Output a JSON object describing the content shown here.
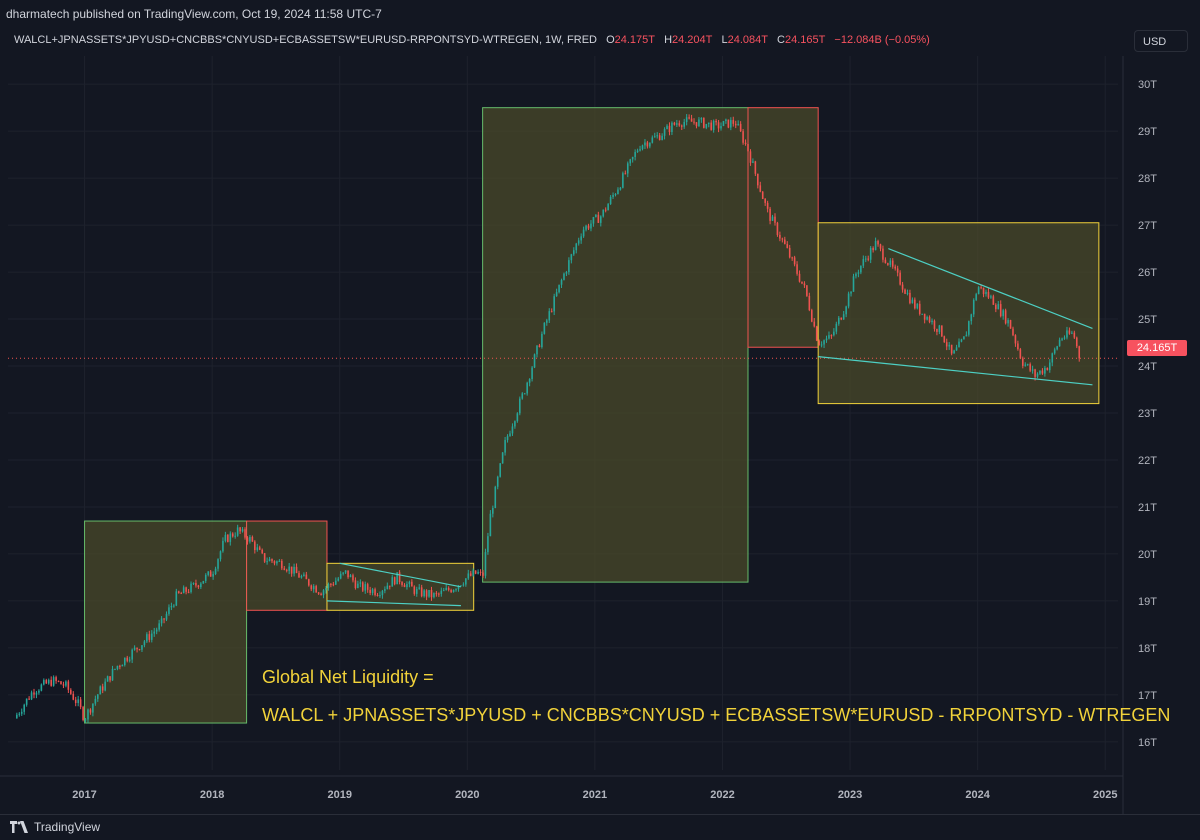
{
  "header": {
    "published_text": "dharmatech published on TradingView.com, Oct 19, 2024 11:58 UTC-7"
  },
  "symbol": {
    "name": "WALCL+JPNASSETS*JPYUSD+CNCBBS*CNYUSD+ECBASSETSW*EURUSD-RRPONTSYD-WTREGEN, 1W, FRED",
    "o_label": "O",
    "o_value": "24.175T",
    "h_label": "H",
    "h_value": "24.204T",
    "l_label": "L",
    "l_value": "24.084T",
    "c_label": "C",
    "c_value": "24.165T",
    "change": "−12.084B (−0.05%)"
  },
  "currency_button": "USD",
  "last_price_badge": "24.165T",
  "annotation": {
    "title": "Global Net Liquidity =",
    "formula": "WALCL + JPNASSETS*JPYUSD + CNCBBS*CNYUSD + ECBASSETSW*EURUSD - RRPONTSYD - WTREGEN"
  },
  "footer": {
    "brand": "TradingView",
    "logo_icon": "tradingview-logo-icon"
  },
  "colors": {
    "background": "#131722",
    "up": "#26a69a",
    "down": "#ef5350",
    "zone_fill": "#4a4a2a",
    "green_box": "#66bb6a",
    "red_box": "#ef5350",
    "yellow_box": "#f2d33a",
    "trendline": "#4dd0c4",
    "annotation_text": "#f2d33a"
  },
  "chart_data": {
    "type": "candlestick",
    "title": "",
    "y_unit": "T (trillions USD)",
    "ylim": [
      15.4,
      30.6
    ],
    "y_ticks": [
      "16T",
      "17T",
      "18T",
      "19T",
      "20T",
      "21T",
      "22T",
      "23T",
      "24T",
      "25T",
      "26T",
      "27T",
      "28T",
      "29T",
      "30T"
    ],
    "y_tick_values": [
      16,
      17,
      18,
      19,
      20,
      21,
      22,
      23,
      24,
      25,
      26,
      27,
      28,
      29,
      30
    ],
    "xlim": [
      2016.4,
      2025.1
    ],
    "x_ticks": [
      "2017",
      "2018",
      "2019",
      "2020",
      "2021",
      "2022",
      "2023",
      "2024",
      "2025"
    ],
    "x_tick_values": [
      2017,
      2018,
      2019,
      2020,
      2021,
      2022,
      2023,
      2024,
      2025
    ],
    "last_price": 24.165,
    "series": [
      {
        "price_path": [
          [
            2016.45,
            16.5
          ],
          [
            2016.6,
            17.1
          ],
          [
            2016.75,
            17.3
          ],
          [
            2016.85,
            17.2
          ],
          [
            2016.95,
            16.8
          ],
          [
            2017.0,
            16.5
          ],
          [
            2017.1,
            17.0
          ],
          [
            2017.25,
            17.6
          ],
          [
            2017.45,
            18.1
          ],
          [
            2017.6,
            18.5
          ],
          [
            2017.72,
            19.1
          ],
          [
            2017.85,
            19.3
          ],
          [
            2018.0,
            19.6
          ],
          [
            2018.1,
            20.3
          ],
          [
            2018.2,
            20.5
          ],
          [
            2018.3,
            20.3
          ],
          [
            2018.4,
            19.9
          ],
          [
            2018.55,
            19.8
          ],
          [
            2018.7,
            19.5
          ],
          [
            2018.85,
            19.2
          ],
          [
            2018.95,
            19.4
          ],
          [
            2019.05,
            19.6
          ],
          [
            2019.15,
            19.3
          ],
          [
            2019.3,
            19.2
          ],
          [
            2019.45,
            19.5
          ],
          [
            2019.6,
            19.2
          ],
          [
            2019.75,
            19.1
          ],
          [
            2019.9,
            19.3
          ],
          [
            2020.0,
            19.5
          ],
          [
            2020.08,
            19.6
          ],
          [
            2020.12,
            19.5
          ],
          [
            2020.18,
            20.8
          ],
          [
            2020.3,
            22.4
          ],
          [
            2020.45,
            23.5
          ],
          [
            2020.6,
            24.8
          ],
          [
            2020.75,
            25.9
          ],
          [
            2020.9,
            26.9
          ],
          [
            2021.05,
            27.2
          ],
          [
            2021.2,
            27.9
          ],
          [
            2021.35,
            28.7
          ],
          [
            2021.5,
            28.9
          ],
          [
            2021.65,
            29.2
          ],
          [
            2021.8,
            29.2
          ],
          [
            2021.95,
            29.1
          ],
          [
            2022.1,
            29.2
          ],
          [
            2022.2,
            28.6
          ],
          [
            2022.35,
            27.3
          ],
          [
            2022.5,
            26.5
          ],
          [
            2022.65,
            25.6
          ],
          [
            2022.75,
            24.5
          ],
          [
            2022.85,
            24.6
          ],
          [
            2022.95,
            25.2
          ],
          [
            2023.05,
            26.0
          ],
          [
            2023.2,
            26.6
          ],
          [
            2023.35,
            26.0
          ],
          [
            2023.5,
            25.3
          ],
          [
            2023.62,
            25.0
          ],
          [
            2023.72,
            24.7
          ],
          [
            2023.8,
            24.2
          ],
          [
            2023.9,
            24.6
          ],
          [
            2024.0,
            25.7
          ],
          [
            2024.12,
            25.4
          ],
          [
            2024.25,
            24.9
          ],
          [
            2024.35,
            24.1
          ],
          [
            2024.45,
            23.8
          ],
          [
            2024.55,
            24.0
          ],
          [
            2024.65,
            24.6
          ],
          [
            2024.75,
            24.7
          ],
          [
            2024.8,
            24.17
          ]
        ]
      }
    ],
    "zones": [
      {
        "color": "green",
        "x0": 2017.0,
        "x1": 2018.27,
        "y0": 16.4,
        "y1": 20.7
      },
      {
        "color": "red",
        "x0": 2018.27,
        "x1": 2018.9,
        "y0": 18.8,
        "y1": 20.7
      },
      {
        "color": "yellow",
        "x0": 2018.9,
        "x1": 2020.05,
        "y0": 18.8,
        "y1": 19.8
      },
      {
        "color": "green",
        "x0": 2020.12,
        "x1": 2022.2,
        "y0": 19.4,
        "y1": 29.5
      },
      {
        "color": "red",
        "x0": 2022.2,
        "x1": 2022.75,
        "y0": 24.4,
        "y1": 29.5
      },
      {
        "color": "yellow",
        "x0": 2022.75,
        "x1": 2024.95,
        "y0": 23.2,
        "y1": 27.05
      }
    ],
    "trendlines": [
      {
        "x0": 2019.0,
        "y0": 19.8,
        "x1": 2019.95,
        "y1": 19.3
      },
      {
        "x0": 2018.9,
        "y0": 19.0,
        "x1": 2019.95,
        "y1": 18.9
      },
      {
        "x0": 2023.3,
        "y0": 26.5,
        "x1": 2024.9,
        "y1": 24.8
      },
      {
        "x0": 2022.75,
        "y0": 24.2,
        "x1": 2024.9,
        "y1": 23.6
      }
    ]
  }
}
